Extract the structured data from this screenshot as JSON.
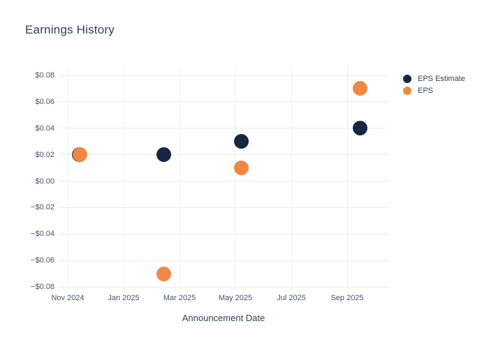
{
  "title": "Earnings History",
  "theme": {
    "background": "#ffffff",
    "grid_color": "#e8edf3",
    "tick_text_color": "#47536b",
    "title_text_color": "#2c415c"
  },
  "chart_data": {
    "type": "scatter",
    "title": "Earnings History",
    "xlabel": "Announcement Date",
    "ylabel": "",
    "grid": true,
    "legend_position": "right",
    "x_axis": {
      "tick_labels": [
        "Nov 2024",
        "Jan 2025",
        "Mar 2025",
        "May 2025",
        "Jul 2025",
        "Sep 2025"
      ],
      "tick_month_offsets_from_nov_2024": [
        0,
        2,
        4,
        6,
        8,
        10
      ]
    },
    "y_axis": {
      "ticks": [
        {
          "value": 0.08,
          "label": "$0.08"
        },
        {
          "value": 0.06,
          "label": "$0.06"
        },
        {
          "value": 0.04,
          "label": "$0.04"
        },
        {
          "value": 0.02,
          "label": "$0.02"
        },
        {
          "value": 0.0,
          "label": "$0.00"
        },
        {
          "value": -0.02,
          "label": "−$0.02"
        },
        {
          "value": -0.04,
          "label": "−$0.04"
        },
        {
          "value": -0.06,
          "label": "−$0.06"
        },
        {
          "value": -0.08,
          "label": "−$0.08"
        }
      ],
      "ylim": [
        -0.088,
        0.088
      ]
    },
    "series": [
      {
        "name": "EPS Estimate",
        "color": "#162740",
        "points": [
          {
            "date": "2024-11-13",
            "value": 0.02
          },
          {
            "date": "2025-02-14",
            "value": 0.02
          },
          {
            "date": "2025-05-07",
            "value": 0.03
          },
          {
            "date": "2025-09-15",
            "value": 0.04
          }
        ]
      },
      {
        "name": "EPS",
        "color": "#f08842",
        "points": [
          {
            "date": "2024-11-14",
            "value": 0.02
          },
          {
            "date": "2025-02-14",
            "value": -0.07
          },
          {
            "date": "2025-05-07",
            "value": 0.01
          },
          {
            "date": "2025-09-15",
            "value": 0.07
          }
        ]
      }
    ]
  }
}
